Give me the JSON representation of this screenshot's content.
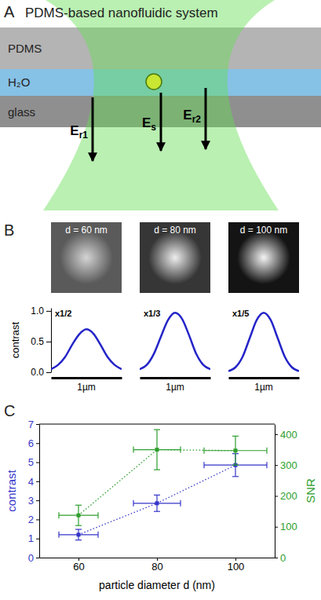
{
  "diagram": {
    "letter": "A",
    "title": "PDMS-based nanofluidic system",
    "layers": [
      "PDMS",
      "H₂O",
      "glass"
    ],
    "fields": [
      {
        "main": "E",
        "sub": "r1"
      },
      {
        "main": "E",
        "sub": "s"
      },
      {
        "main": "E",
        "sub": "r2"
      }
    ]
  },
  "images": {
    "letter": "B",
    "labels": [
      "d = 60 nm",
      "d = 80 nm",
      "d = 100 nm"
    ]
  },
  "chart_data": [
    {
      "type": "line",
      "ylabel": "contrast",
      "xlabel": "1µm",
      "annotation": "x1/2",
      "x": [
        0,
        0.1,
        0.2,
        0.3,
        0.4,
        0.5,
        0.6,
        0.7,
        0.8,
        0.9,
        1
      ],
      "values": [
        0.05,
        0.12,
        0.25,
        0.45,
        0.62,
        0.7,
        0.63,
        0.45,
        0.25,
        0.12,
        0.05
      ],
      "xlim": [
        0,
        1
      ],
      "ylim": [
        0,
        1.05
      ],
      "yticks": [
        {
          "value": 0,
          "label": "0.0"
        },
        {
          "value": 0.5,
          "label": "0.5"
        },
        {
          "value": 1,
          "label": "1.0"
        }
      ],
      "tick_labels": "y",
      "color": "#2424c8"
    },
    {
      "type": "line",
      "xlabel": "1µm",
      "annotation": "x1/3",
      "x": [
        0,
        0.1,
        0.2,
        0.3,
        0.4,
        0.5,
        0.6,
        0.7,
        0.8,
        0.9,
        1
      ],
      "values": [
        0.05,
        0.12,
        0.3,
        0.58,
        0.85,
        0.97,
        0.87,
        0.6,
        0.3,
        0.12,
        0.05
      ],
      "xlim": [
        0,
        1
      ],
      "ylim": [
        0,
        1.05
      ],
      "tick_labels": false,
      "color": "#2424c8"
    },
    {
      "type": "line",
      "xlabel": "1µm",
      "annotation": "x1/5",
      "x": [
        0,
        0.1,
        0.2,
        0.3,
        0.4,
        0.5,
        0.6,
        0.7,
        0.8,
        0.9,
        1
      ],
      "values": [
        0.02,
        0.08,
        0.25,
        0.55,
        0.85,
        0.97,
        0.85,
        0.55,
        0.25,
        0.08,
        0.02
      ],
      "xlim": [
        0,
        1
      ],
      "ylim": [
        0,
        1.05
      ],
      "tick_labels": false,
      "color": "#2424c8"
    },
    {
      "type": "line",
      "letter": "C",
      "xlabel": "particle diameter d (nm)",
      "ylabel": "contrast",
      "y2label": "SNR",
      "x": [
        60,
        80,
        100
      ],
      "xlim": [
        50,
        110
      ],
      "xticks": [
        60,
        80,
        100
      ],
      "ylim": [
        0,
        7
      ],
      "yticks": [
        0,
        1,
        2,
        3,
        4,
        5,
        6,
        7
      ],
      "y2lim": [
        0,
        433
      ],
      "y2ticks": [
        0,
        100,
        200,
        300,
        400
      ],
      "series": [
        {
          "color": "#3535c8",
          "values": [
            1.2,
            2.85,
            4.85
          ],
          "errors": [
            0.28,
            0.43,
            0.6
          ],
          "x_errors": [
            5,
            6,
            8
          ],
          "marker": "square",
          "line_style": "dotted"
        },
        {
          "axis": "y2",
          "color": "#2e9e2e",
          "values": [
            137,
            350,
            347
          ],
          "errors": [
            33,
            65,
            47
          ],
          "x_errors": [
            5,
            6,
            8
          ],
          "marker": "square",
          "line_style": "dotted"
        }
      ]
    }
  ]
}
